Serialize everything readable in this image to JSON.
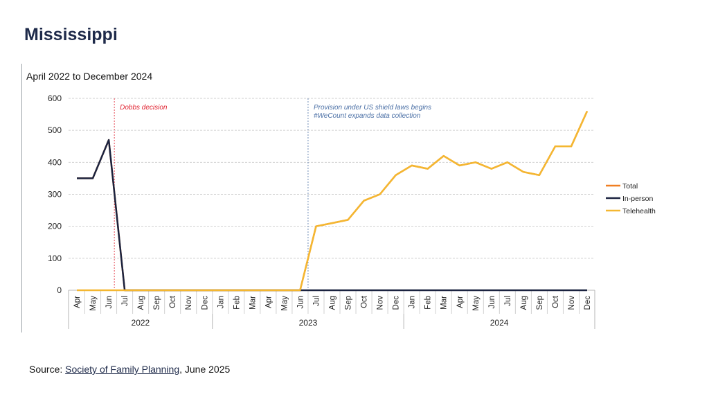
{
  "page": {
    "title": "Mississippi",
    "source_prefix": "Source: ",
    "source_link": "Society of Family Planning",
    "source_suffix": ", June 2025"
  },
  "chart_data": {
    "type": "line",
    "title": "April 2022 to December 2024",
    "ylim": [
      0,
      600
    ],
    "yticks": [
      0,
      100,
      200,
      300,
      400,
      500,
      600
    ],
    "grid": true,
    "legend_position": "right",
    "categories": [
      "Apr",
      "May",
      "Jun",
      "Jul",
      "Aug",
      "Sep",
      "Oct",
      "Nov",
      "Dec",
      "Jan",
      "Feb",
      "Mar",
      "Apr",
      "May",
      "Jun",
      "Jul",
      "Aug",
      "Sep",
      "Oct",
      "Nov",
      "Dec",
      "Jan",
      "Feb",
      "Mar",
      "Apr",
      "May",
      "Jun",
      "Jul",
      "Aug",
      "Sep",
      "Oct",
      "Nov",
      "Dec"
    ],
    "year_groups": [
      {
        "label": "2022",
        "start": 0,
        "end": 8
      },
      {
        "label": "2023",
        "start": 9,
        "end": 20
      },
      {
        "label": "2024",
        "start": 21,
        "end": 32
      }
    ],
    "series": [
      {
        "name": "Total",
        "color": "#f07f22",
        "values": [
          350,
          350,
          470,
          0,
          0,
          0,
          0,
          0,
          0,
          0,
          0,
          0,
          0,
          0,
          0,
          200,
          210,
          220,
          280,
          300,
          360,
          390,
          380,
          420,
          390,
          400,
          380,
          400,
          370,
          360,
          450,
          450,
          560
        ]
      },
      {
        "name": "In-person",
        "color": "#1b2340",
        "values": [
          350,
          350,
          470,
          0,
          0,
          0,
          0,
          0,
          0,
          0,
          0,
          0,
          0,
          0,
          0,
          0,
          0,
          0,
          0,
          0,
          0,
          0,
          0,
          0,
          0,
          0,
          0,
          0,
          0,
          0,
          0,
          0,
          0
        ]
      },
      {
        "name": "Telehealth",
        "color": "#f4b731",
        "values": [
          0,
          0,
          0,
          0,
          0,
          0,
          0,
          0,
          0,
          0,
          0,
          0,
          0,
          0,
          0,
          200,
          210,
          220,
          280,
          300,
          360,
          390,
          380,
          420,
          390,
          400,
          380,
          400,
          370,
          360,
          450,
          450,
          560
        ]
      }
    ],
    "annotations": [
      {
        "text": "Dobbs decision",
        "x_index": 2.35,
        "color": "#e0202e"
      },
      {
        "text": "Provision under US shield laws begins",
        "text2": "#WeCount expands data collection",
        "x_index": 14.5,
        "color": "#4a6fa5"
      }
    ]
  }
}
